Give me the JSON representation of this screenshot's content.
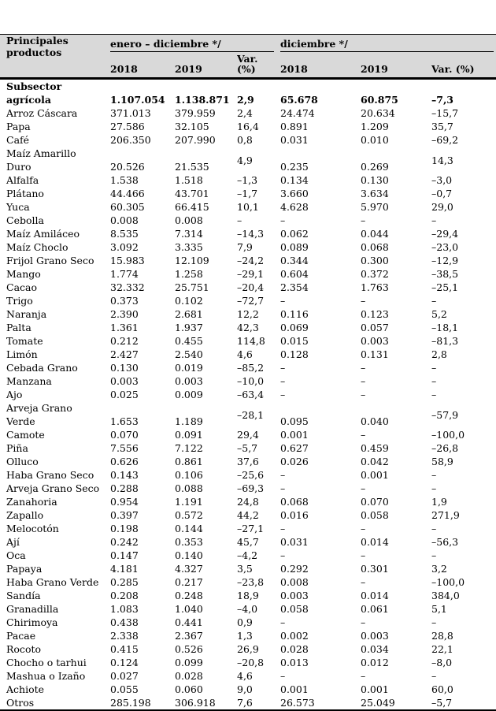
{
  "colors": {
    "header_bg": "#d9d9d9"
  },
  "table": {
    "header": {
      "product_label": "Principales\nproductos",
      "group1_label": "enero – diciembre */",
      "group2_label": "diciembre */",
      "sub_labels": [
        "2018",
        "2019",
        "Var.\n(%)",
        "2018",
        "2019",
        "Var. (%)"
      ]
    },
    "rows": [
      {
        "name": "Subsector\nagrícola",
        "bold": true,
        "values": [
          "1.107.054",
          "1.138.871",
          "2,9",
          "65.678",
          "60.875",
          "–7,3"
        ]
      },
      {
        "name": "Arroz Cáscara",
        "values": [
          "371.013",
          "379.959",
          "2,4",
          "24.474",
          "20.634",
          "–15,7"
        ]
      },
      {
        "name": "Papa",
        "values": [
          "27.586",
          "32.105",
          "16,4",
          "0.891",
          "1.209",
          "35,7"
        ]
      },
      {
        "name": "Café",
        "values": [
          "206.350",
          "207.990",
          "0,8",
          "0.031",
          "0.010",
          "–69,2"
        ]
      },
      {
        "name": "Maíz Amarillo\nDuro",
        "var_middle": true,
        "values": [
          "20.526",
          "21.535",
          "4,9",
          "0.235",
          "0.269",
          "14,3"
        ]
      },
      {
        "name": "Alfalfa",
        "values": [
          "1.538",
          "1.518",
          "–1,3",
          "0.134",
          "0.130",
          "–3,0"
        ]
      },
      {
        "name": "Plátano",
        "values": [
          "44.466",
          "43.701",
          "–1,7",
          "3.660",
          "3.634",
          "–0,7"
        ]
      },
      {
        "name": "Yuca",
        "values": [
          "60.305",
          "66.415",
          "10,1",
          "4.628",
          "5.970",
          "29,0"
        ]
      },
      {
        "name": "Cebolla",
        "values": [
          "0.008",
          "0.008",
          "–",
          "–",
          "–",
          "–"
        ]
      },
      {
        "name": "Maíz Amiláceo",
        "values": [
          "8.535",
          "7.314",
          "–14,3",
          "0.062",
          "0.044",
          "–29,4"
        ]
      },
      {
        "name": "Maíz Choclo",
        "values": [
          "3.092",
          "3.335",
          "7,9",
          "0.089",
          "0.068",
          "–23,0"
        ]
      },
      {
        "name": "Frijol Grano Seco",
        "values": [
          "15.983",
          "12.109",
          "–24,2",
          "0.344",
          "0.300",
          "–12,9"
        ]
      },
      {
        "name": "Mango",
        "values": [
          "1.774",
          "1.258",
          "–29,1",
          "0.604",
          "0.372",
          "–38,5"
        ]
      },
      {
        "name": "Cacao",
        "values": [
          "32.332",
          "25.751",
          "–20,4",
          "2.354",
          "1.763",
          "–25,1"
        ]
      },
      {
        "name": "Trigo",
        "values": [
          "0.373",
          "0.102",
          "–72,7",
          "–",
          "–",
          "–"
        ]
      },
      {
        "name": "Naranja",
        "values": [
          "2.390",
          "2.681",
          "12,2",
          "0.116",
          "0.123",
          "5,2"
        ]
      },
      {
        "name": "Palta",
        "values": [
          "1.361",
          "1.937",
          "42,3",
          "0.069",
          "0.057",
          "–18,1"
        ]
      },
      {
        "name": "Tomate",
        "values": [
          "0.212",
          "0.455",
          "114,8",
          "0.015",
          "0.003",
          "–81,3"
        ]
      },
      {
        "name": "Limón",
        "values": [
          "2.427",
          "2.540",
          "4,6",
          "0.128",
          "0.131",
          "2,8"
        ]
      },
      {
        "name": "Cebada Grano",
        "values": [
          "0.130",
          "0.019",
          "–85,2",
          "–",
          "–",
          "–"
        ]
      },
      {
        "name": "Manzana",
        "values": [
          "0.003",
          "0.003",
          "–10,0",
          "–",
          "–",
          "–"
        ]
      },
      {
        "name": "Ajo",
        "values": [
          "0.025",
          "0.009",
          "–63,4",
          "–",
          "–",
          "–"
        ]
      },
      {
        "name": "Arveja Grano\nVerde",
        "var_middle": true,
        "values": [
          "1.653",
          "1.189",
          "–28,1",
          "0.095",
          "0.040",
          "–57,9"
        ]
      },
      {
        "name": "Camote",
        "values": [
          "0.070",
          "0.091",
          "29,4",
          "0.001",
          "–",
          "–100,0"
        ]
      },
      {
        "name": "Piña",
        "values": [
          "7.556",
          "7.122",
          "–5,7",
          "0.627",
          "0.459",
          "–26,8"
        ]
      },
      {
        "name": "Olluco",
        "values": [
          "0.626",
          "0.861",
          "37,6",
          "0.026",
          "0.042",
          "58,9"
        ]
      },
      {
        "name": "Haba Grano Seco",
        "values": [
          "0.143",
          "0.106",
          "–25,6",
          "–",
          "0.001",
          "–"
        ]
      },
      {
        "name": "Arveja Grano Seco",
        "values": [
          "0.288",
          "0.088",
          "–69,3",
          "–",
          "–",
          "–"
        ]
      },
      {
        "name": "Zanahoria",
        "values": [
          "0.954",
          "1.191",
          "24,8",
          "0.068",
          "0.070",
          "1,9"
        ]
      },
      {
        "name": "Zapallo",
        "values": [
          "0.397",
          "0.572",
          "44,2",
          "0.016",
          "0.058",
          "271,9"
        ]
      },
      {
        "name": "Melocotón",
        "values": [
          "0.198",
          "0.144",
          "–27,1",
          "–",
          "–",
          "–"
        ]
      },
      {
        "name": "Ají",
        "values": [
          "0.242",
          "0.353",
          "45,7",
          "0.031",
          "0.014",
          "–56,3"
        ]
      },
      {
        "name": "Oca",
        "values": [
          "0.147",
          "0.140",
          "–4,2",
          "–",
          "–",
          "–"
        ]
      },
      {
        "name": "Papaya",
        "values": [
          "4.181",
          "4.327",
          "3,5",
          "0.292",
          "0.301",
          "3,2"
        ]
      },
      {
        "name": "Haba Grano Verde",
        "values": [
          "0.285",
          "0.217",
          "–23,8",
          "0.008",
          "–",
          "–100,0"
        ]
      },
      {
        "name": "Sandía",
        "values": [
          "0.208",
          "0.248",
          "18,9",
          "0.003",
          "0.014",
          "384,0"
        ]
      },
      {
        "name": "Granadilla",
        "values": [
          "1.083",
          "1.040",
          "–4,0",
          "0.058",
          "0.061",
          "5,1"
        ]
      },
      {
        "name": "Chirimoya",
        "values": [
          "0.438",
          "0.441",
          "0,9",
          "–",
          "–",
          "–"
        ]
      },
      {
        "name": "Pacae",
        "values": [
          "2.338",
          "2.367",
          "1,3",
          "0.002",
          "0.003",
          "28,8"
        ]
      },
      {
        "name": "Rocoto",
        "values": [
          "0.415",
          "0.526",
          "26,9",
          "0.028",
          "0.034",
          "22,1"
        ]
      },
      {
        "name": "Chocho o tarhui",
        "values": [
          "0.124",
          "0.099",
          "–20,8",
          "0.013",
          "0.012",
          "–8,0"
        ]
      },
      {
        "name": "Mashua o Izaño",
        "values": [
          "0.027",
          "0.028",
          "4,6",
          "–",
          "–",
          "–"
        ]
      },
      {
        "name": "Achiote",
        "values": [
          "0.055",
          "0.060",
          "9,0",
          "0.001",
          "0.001",
          "60,0"
        ]
      },
      {
        "name": "Otros",
        "values": [
          "285.198",
          "306.918",
          "7,6",
          "26.573",
          "25.049",
          "–5,7"
        ]
      }
    ]
  }
}
